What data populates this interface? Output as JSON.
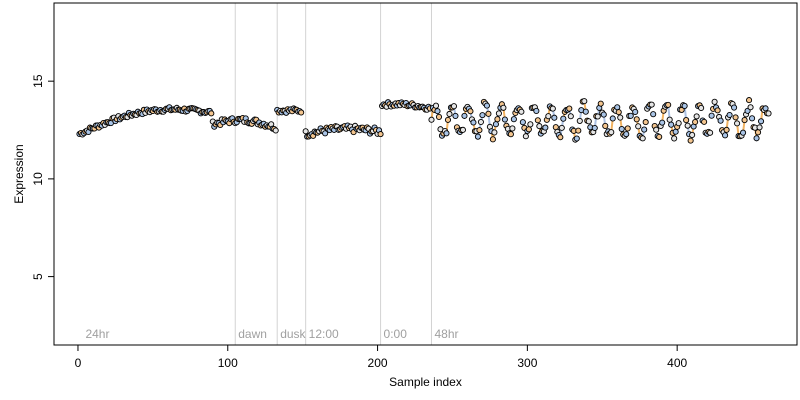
{
  "chart_data": {
    "type": "scatter",
    "title": "",
    "xlabel": "Sample index",
    "ylabel": "Expression",
    "xlim": [
      -16,
      480
    ],
    "ylim": [
      1.5,
      19
    ],
    "x_ticks": [
      0,
      100,
      200,
      300,
      400
    ],
    "y_ticks": [
      5,
      10,
      15
    ],
    "grid": false,
    "colors": {
      "point_stroke": "#000000",
      "point_fill_a": "#a9c4e6",
      "point_fill_b": "#f3c58f",
      "point_fill_c": "#e5e5e5",
      "line_blue": "#9db6dd",
      "line_orange": "#f0a646",
      "divider": "#d3d3d3",
      "annotation": "#a0a0a0"
    },
    "dividers": [
      {
        "x": 105,
        "label": "dawn"
      },
      {
        "x": 133,
        "label": "dusk"
      },
      {
        "x": 152,
        "label": "12:00"
      },
      {
        "x": 202,
        "label": "0:00"
      },
      {
        "x": 236,
        "label": "48hr"
      }
    ],
    "start_label": {
      "x": 3,
      "label": "24hr"
    },
    "segments": [
      {
        "x_start": 1,
        "x_end": 90,
        "y_start": 12.3,
        "y_end": 13.4,
        "amplitude": 0.6,
        "period": 0,
        "noise": 0.12
      },
      {
        "x_start": 90,
        "x_end": 133,
        "y_start": 12.8,
        "y_end": 12.6,
        "amplitude": 0.3,
        "period": 0,
        "noise": 0.15
      },
      {
        "x_start": 133,
        "x_end": 150,
        "y_start": 13.5,
        "y_end": 13.5,
        "amplitude": 0.0,
        "period": 0,
        "noise": 0.12
      },
      {
        "x_start": 152,
        "x_end": 203,
        "y_start": 12.3,
        "y_end": 12.4,
        "amplitude": 0.2,
        "period": 0,
        "noise": 0.18
      },
      {
        "x_start": 203,
        "x_end": 236,
        "y_start": 13.8,
        "y_end": 13.6,
        "amplitude": 0.1,
        "period": 0,
        "noise": 0.12
      },
      {
        "x_start": 236,
        "x_end": 462,
        "y_start": 13.0,
        "y_end": 13.0,
        "amplitude": 0.8,
        "period": 11,
        "noise": 0.25
      }
    ]
  }
}
